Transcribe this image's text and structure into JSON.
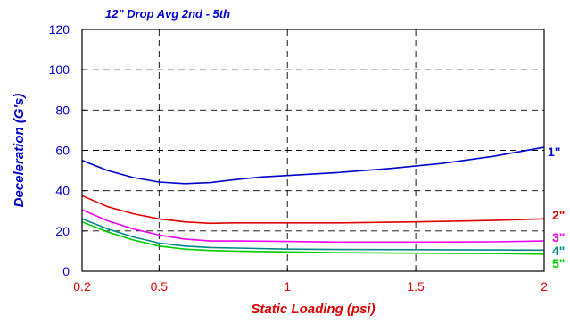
{
  "chart_data": {
    "type": "line",
    "title": "12\" Drop  Avg 2nd - 5th",
    "xlabel": "Static Loading (psi)",
    "ylabel": "Deceleration (G's)",
    "xlim": [
      0.2,
      2
    ],
    "ylim": [
      0,
      120
    ],
    "x_ticks": [
      0.2,
      0.5,
      1,
      1.5,
      2
    ],
    "x_tick_labels": [
      "0.2",
      "0.5",
      "1",
      "1.5",
      "2"
    ],
    "y_ticks": [
      0,
      20,
      40,
      60,
      80,
      100,
      120
    ],
    "y_tick_labels": [
      "0",
      "20",
      "40",
      "60",
      "80",
      "100",
      "120"
    ],
    "grid": true,
    "series": [
      {
        "name": "1\"",
        "color": "#0000cc",
        "points": [
          [
            0.2,
            55
          ],
          [
            0.3,
            50
          ],
          [
            0.4,
            46.5
          ],
          [
            0.5,
            44.3
          ],
          [
            0.6,
            43.5
          ],
          [
            0.7,
            44
          ],
          [
            0.8,
            45.5
          ],
          [
            0.9,
            46.8
          ],
          [
            1.0,
            47.5
          ],
          [
            1.2,
            49
          ],
          [
            1.4,
            51
          ],
          [
            1.6,
            53.5
          ],
          [
            1.8,
            57
          ],
          [
            2.0,
            61.5
          ]
        ]
      },
      {
        "name": "2\"",
        "color": "#dd0000",
        "points": [
          [
            0.2,
            37.5
          ],
          [
            0.3,
            32
          ],
          [
            0.4,
            28.5
          ],
          [
            0.5,
            26
          ],
          [
            0.6,
            24.5
          ],
          [
            0.7,
            23.8
          ],
          [
            0.8,
            24
          ],
          [
            1.0,
            24
          ],
          [
            1.2,
            24
          ],
          [
            1.5,
            24.5
          ],
          [
            1.8,
            25.2
          ],
          [
            2.0,
            26
          ]
        ]
      },
      {
        "name": "3\"",
        "color": "#ee00ee",
        "points": [
          [
            0.2,
            30.5
          ],
          [
            0.3,
            25
          ],
          [
            0.4,
            21
          ],
          [
            0.5,
            18
          ],
          [
            0.6,
            16
          ],
          [
            0.7,
            15
          ],
          [
            0.8,
            15
          ],
          [
            1.0,
            14.8
          ],
          [
            1.2,
            14.5
          ],
          [
            1.5,
            14.5
          ],
          [
            1.8,
            14.6
          ],
          [
            2.0,
            15
          ]
        ]
      },
      {
        "name": "4\"",
        "color": "#008888",
        "points": [
          [
            0.2,
            26
          ],
          [
            0.3,
            21
          ],
          [
            0.4,
            17
          ],
          [
            0.5,
            14
          ],
          [
            0.6,
            12.5
          ],
          [
            0.7,
            11.8
          ],
          [
            0.8,
            11.5
          ],
          [
            1.0,
            11
          ],
          [
            1.2,
            10.8
          ],
          [
            1.5,
            10.7
          ],
          [
            1.8,
            10.6
          ],
          [
            2.0,
            10.5
          ]
        ]
      },
      {
        "name": "5\"",
        "color": "#00cc00",
        "points": [
          [
            0.2,
            24.5
          ],
          [
            0.3,
            19.5
          ],
          [
            0.4,
            15.5
          ],
          [
            0.5,
            12.5
          ],
          [
            0.6,
            11
          ],
          [
            0.7,
            10.3
          ],
          [
            0.8,
            10
          ],
          [
            1.0,
            9.6
          ],
          [
            1.2,
            9.2
          ],
          [
            1.5,
            9
          ],
          [
            1.8,
            8.8
          ],
          [
            2.0,
            8.5
          ]
        ]
      }
    ]
  },
  "colors": {
    "title": "#0000cc",
    "axis_labels": "#dd0000",
    "ylabel": "#0000cc",
    "x_ticks": "#dd0000",
    "y_ticks": "#0000cc"
  }
}
